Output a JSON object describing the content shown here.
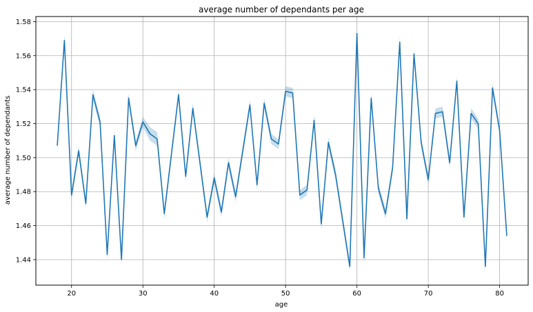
{
  "chart_data": {
    "type": "line",
    "title": "average number of dependants per age",
    "xlabel": "age",
    "ylabel": "average number of dependants",
    "xlim": [
      15,
      84
    ],
    "ylim": [
      1.425,
      1.583
    ],
    "xticks": [
      20,
      30,
      40,
      50,
      60,
      70,
      80
    ],
    "yticks": [
      1.44,
      1.46,
      1.48,
      1.5,
      1.52,
      1.54,
      1.56,
      1.58
    ],
    "grid": true,
    "line_color": "#1f77b4",
    "band_color": "#1f77b4",
    "series": [
      {
        "x": [
          18,
          19,
          20,
          21,
          22,
          23,
          24,
          25,
          26,
          27,
          28,
          29,
          30,
          31,
          32,
          33,
          34,
          35,
          36,
          37,
          38,
          39,
          40,
          41,
          42,
          43,
          44,
          45,
          46,
          47,
          48,
          49,
          50,
          51,
          52,
          53,
          54,
          55,
          56,
          57,
          58,
          59,
          60,
          61,
          62,
          63,
          64,
          65,
          66,
          67,
          68,
          69,
          70,
          71,
          72,
          73,
          74,
          75,
          76,
          77,
          78,
          79,
          80,
          81
        ],
        "y": [
          1.507,
          1.569,
          1.478,
          1.504,
          1.473,
          1.537,
          1.521,
          1.443,
          1.513,
          1.44,
          1.535,
          1.507,
          1.521,
          1.514,
          1.511,
          1.467,
          1.502,
          1.537,
          1.489,
          1.529,
          1.497,
          1.465,
          1.488,
          1.468,
          1.497,
          1.477,
          1.504,
          1.531,
          1.484,
          1.532,
          1.511,
          1.508,
          1.539,
          1.538,
          1.478,
          1.481,
          1.522,
          1.461,
          1.509,
          1.49,
          1.463,
          1.436,
          1.573,
          1.441,
          1.535,
          1.482,
          1.467,
          1.494,
          1.568,
          1.464,
          1.561,
          1.509,
          1.487,
          1.526,
          1.527,
          1.497,
          1.545,
          1.465,
          1.526,
          1.52,
          1.436,
          1.541,
          1.516,
          1.454
        ],
        "ci": [
          0.003,
          0.003,
          0.003,
          0.003,
          0.003,
          0.003,
          0.003,
          0.003,
          0.003,
          0.003,
          0.003,
          0.003,
          0.003,
          0.004,
          0.004,
          0.003,
          0.003,
          0.003,
          0.003,
          0.003,
          0.003,
          0.003,
          0.003,
          0.003,
          0.003,
          0.003,
          0.003,
          0.003,
          0.003,
          0.003,
          0.003,
          0.003,
          0.003,
          0.003,
          0.003,
          0.003,
          0.003,
          0.003,
          0.003,
          0.003,
          0.003,
          0.003,
          0.003,
          0.003,
          0.003,
          0.003,
          0.003,
          0.003,
          0.003,
          0.003,
          0.003,
          0.003,
          0.003,
          0.003,
          0.003,
          0.003,
          0.003,
          0.003,
          0.003,
          0.003,
          0.003,
          0.003,
          0.003,
          0.003
        ]
      }
    ]
  }
}
